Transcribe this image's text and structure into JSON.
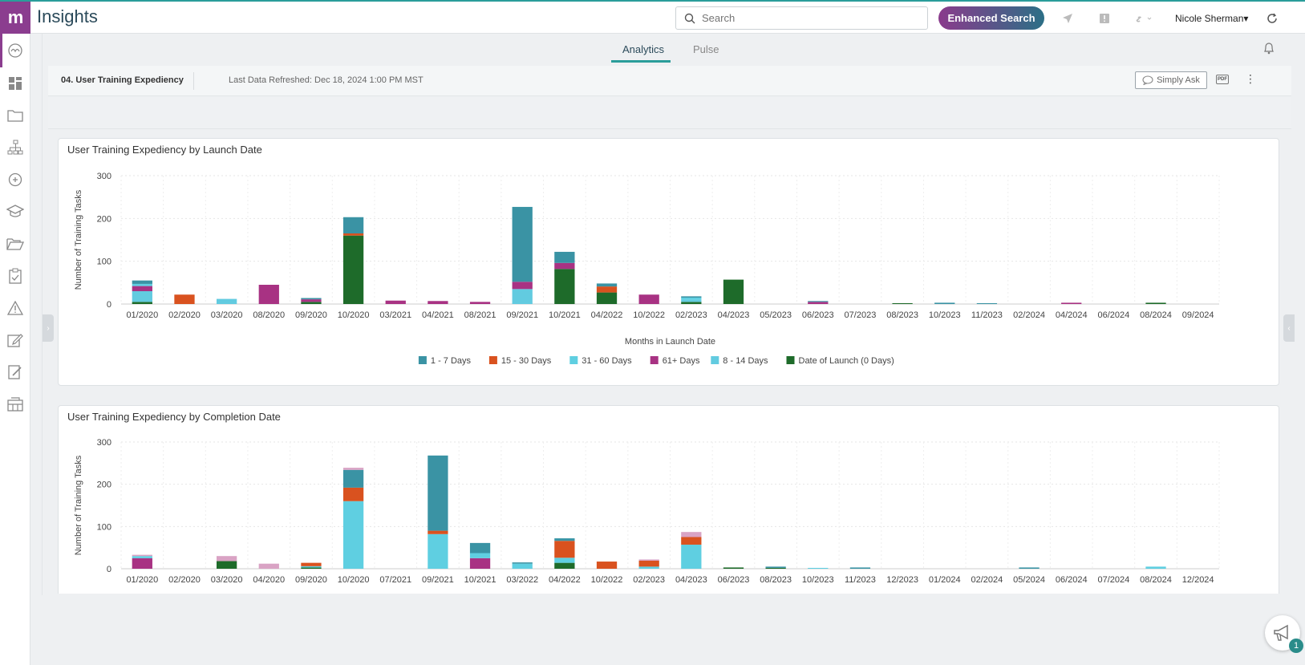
{
  "app": {
    "logo_text": "m",
    "title": "Insights"
  },
  "header": {
    "search_placeholder": "Search",
    "enhanced_search_label": "Enhanced Search",
    "user_name": "Nicole Sherman"
  },
  "tabs": [
    {
      "label": "Analytics",
      "active": true
    },
    {
      "label": "Pulse",
      "active": false
    }
  ],
  "dashboard": {
    "title": "04. User Training Expediency",
    "refresh_text": "Last Data Refreshed: Dec 18, 2024 1:00 PM MST",
    "simply_ask_label": "Simply Ask",
    "pdf_label": "PDF"
  },
  "help": {
    "badge_count": "1"
  },
  "series_colors": {
    "Date of Launch (0 Days)": "#1e6b2a",
    "8 - 14 Days": "#62cbe0",
    "61+ Days": "#a83283",
    "31 - 60 Days": "#5fcfe1",
    "15 - 30 Days": "#d9521f",
    "1 - 7 Days": "#3a93a4",
    "other": "#d9a3c4"
  },
  "chart_data": [
    {
      "type": "bar",
      "stacked": true,
      "title": "User Training Expediency by Launch Date",
      "xlabel": "Months in Launch Date",
      "ylabel": "Number of Training Tasks",
      "ylim": [
        0,
        300
      ],
      "yticks": [
        0,
        100,
        200,
        300
      ],
      "legend": [
        "1 - 7 Days",
        "15 - 30 Days",
        "31 - 60 Days",
        "61+ Days",
        "8 - 14 Days",
        "Date of Launch (0 Days)"
      ],
      "categories": [
        "01/2020",
        "02/2020",
        "03/2020",
        "08/2020",
        "09/2020",
        "10/2020",
        "03/2021",
        "04/2021",
        "08/2021",
        "09/2021",
        "10/2021",
        "04/2022",
        "10/2022",
        "02/2023",
        "04/2023",
        "05/2023",
        "06/2023",
        "07/2023",
        "08/2023",
        "10/2023",
        "11/2023",
        "02/2024",
        "04/2024",
        "06/2024",
        "08/2024",
        "09/2024"
      ],
      "series": [
        {
          "name": "Date of Launch (0 Days)",
          "values": [
            5,
            0,
            0,
            0,
            5,
            160,
            0,
            0,
            0,
            0,
            82,
            27,
            0,
            5,
            57,
            0,
            0,
            0,
            2,
            0,
            0,
            0,
            0,
            0,
            3,
            0
          ]
        },
        {
          "name": "8 - 14 Days",
          "values": [
            25,
            0,
            12,
            0,
            0,
            0,
            0,
            0,
            0,
            35,
            0,
            0,
            0,
            5,
            0,
            0,
            0,
            0,
            0,
            0,
            0,
            0,
            0,
            0,
            0,
            0
          ]
        },
        {
          "name": "61+ Days",
          "values": [
            12,
            0,
            0,
            45,
            6,
            0,
            8,
            7,
            5,
            17,
            14,
            0,
            22,
            0,
            0,
            0,
            5,
            0,
            0,
            0,
            0,
            0,
            3,
            0,
            0,
            0
          ]
        },
        {
          "name": "31 - 60 Days",
          "values": [
            5,
            0,
            0,
            0,
            0,
            0,
            0,
            0,
            0,
            0,
            0,
            0,
            0,
            5,
            0,
            0,
            0,
            0,
            0,
            0,
            0,
            0,
            0,
            0,
            0,
            0
          ]
        },
        {
          "name": "15 - 30 Days",
          "values": [
            0,
            22,
            0,
            0,
            0,
            5,
            0,
            0,
            0,
            0,
            0,
            14,
            0,
            0,
            0,
            0,
            0,
            0,
            0,
            0,
            0,
            0,
            0,
            0,
            0,
            0
          ]
        },
        {
          "name": "1 - 7 Days",
          "values": [
            8,
            0,
            0,
            0,
            3,
            38,
            0,
            0,
            0,
            175,
            26,
            7,
            0,
            3,
            0,
            0,
            2,
            0,
            0,
            3,
            2,
            0,
            0,
            0,
            0,
            0
          ]
        }
      ]
    },
    {
      "type": "bar",
      "stacked": true,
      "title": "User Training Expediency by Completion Date",
      "xlabel": "",
      "ylabel": "Number of Training Tasks",
      "ylim": [
        0,
        300
      ],
      "yticks": [
        0,
        100,
        200,
        300
      ],
      "categories": [
        "01/2020",
        "02/2020",
        "03/2020",
        "04/2020",
        "09/2020",
        "10/2020",
        "07/2021",
        "09/2021",
        "10/2021",
        "03/2022",
        "04/2022",
        "10/2022",
        "02/2023",
        "04/2023",
        "06/2023",
        "08/2023",
        "10/2023",
        "11/2023",
        "12/2023",
        "01/2024",
        "02/2024",
        "05/2024",
        "06/2024",
        "07/2024",
        "08/2024",
        "12/2024"
      ],
      "series": [
        {
          "name": "Date of Launch (0 Days)",
          "values": [
            0,
            0,
            18,
            0,
            3,
            0,
            0,
            0,
            0,
            0,
            14,
            0,
            0,
            0,
            3,
            2,
            0,
            0,
            0,
            0,
            0,
            0,
            0,
            0,
            0,
            0
          ]
        },
        {
          "name": "8 - 14 Days",
          "values": [
            0,
            0,
            0,
            0,
            0,
            0,
            0,
            0,
            0,
            0,
            0,
            0,
            0,
            0,
            0,
            0,
            0,
            0,
            0,
            0,
            0,
            0,
            0,
            0,
            0,
            0
          ]
        },
        {
          "name": "61+ Days",
          "values": [
            25,
            0,
            0,
            0,
            0,
            0,
            0,
            0,
            25,
            0,
            0,
            0,
            0,
            0,
            0,
            0,
            0,
            0,
            0,
            0,
            0,
            0,
            0,
            0,
            0,
            0
          ]
        },
        {
          "name": "31 - 60 Days",
          "values": [
            5,
            0,
            0,
            0,
            3,
            160,
            0,
            82,
            12,
            12,
            12,
            0,
            5,
            57,
            0,
            0,
            2,
            0,
            0,
            0,
            0,
            0,
            0,
            0,
            5,
            0
          ]
        },
        {
          "name": "15 - 30 Days",
          "values": [
            0,
            0,
            0,
            0,
            8,
            32,
            0,
            8,
            0,
            0,
            40,
            17,
            14,
            18,
            0,
            0,
            0,
            0,
            0,
            0,
            0,
            0,
            0,
            0,
            0,
            0
          ]
        },
        {
          "name": "1 - 7 Days",
          "values": [
            0,
            0,
            0,
            0,
            0,
            42,
            0,
            178,
            24,
            3,
            6,
            0,
            0,
            0,
            0,
            3,
            0,
            3,
            0,
            0,
            0,
            3,
            0,
            0,
            0,
            0
          ]
        },
        {
          "name": "other",
          "values": [
            3,
            0,
            12,
            12,
            0,
            5,
            0,
            0,
            0,
            0,
            0,
            0,
            3,
            12,
            0,
            0,
            0,
            0,
            0,
            0,
            0,
            0,
            0,
            0,
            0,
            0
          ]
        }
      ]
    }
  ]
}
